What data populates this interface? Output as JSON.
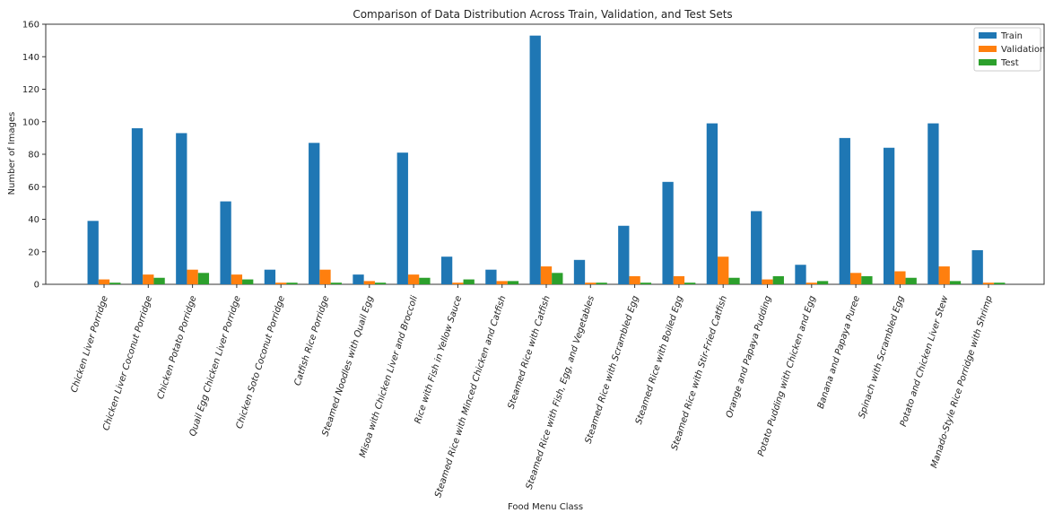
{
  "chart_data": {
    "type": "bar",
    "title": "Comparison of Data Distribution Across Train, Validation, and Test Sets",
    "xlabel": "Food Menu Class",
    "ylabel": "Number of Images",
    "ylim": [
      0,
      160
    ],
    "yticks": [
      0,
      20,
      40,
      60,
      80,
      100,
      120,
      140,
      160
    ],
    "legend_position": "top-right",
    "grid": false,
    "categories": [
      "Chicken Liver Porridge",
      "Chicken Liver Coconut Porridge",
      "Chicken Potato Porridge",
      "Quail Egg Chicken Liver Porridge",
      "Chicken Soto Coconut Porridge",
      "Catfish Rice Porridge",
      "Steamed Noodles with Quail Egg",
      "Misoa with Chicken Liver and Broccoli",
      "Rice with Fish in Yellow Sauce",
      "Steamed Rice with Minced Chicken and Catfish",
      "Steamed Rice with Catfish",
      "Steamed Rice with Fish, Egg, and Vegetables",
      "Steamed Rice with Scrambled Egg",
      "Steamed Rice with Boiled Egg",
      "Steamed Rice with Stir-Fried Catfish",
      "Orange and Papaya Pudding",
      "Potato Pudding with Chicken and Egg",
      "Banana and Papaya Puree",
      "Spinach with Scrambled Egg",
      "Potato and Chicken Liver Stew",
      "Manado-Style Rice Porridge with Shrimp"
    ],
    "series": [
      {
        "name": "Train",
        "color": "#1f77b4",
        "values": [
          39,
          96,
          93,
          51,
          9,
          87,
          6,
          81,
          17,
          9,
          153,
          15,
          36,
          63,
          99,
          45,
          12,
          90,
          84,
          99,
          21
        ]
      },
      {
        "name": "Validation",
        "color": "#ff7f0e",
        "values": [
          3,
          6,
          9,
          6,
          1,
          9,
          2,
          6,
          1,
          2,
          11,
          1,
          5,
          5,
          17,
          3,
          1,
          7,
          8,
          11,
          1
        ]
      },
      {
        "name": "Test",
        "color": "#2ca02c",
        "values": [
          1,
          4,
          7,
          3,
          1,
          1,
          1,
          4,
          3,
          2,
          7,
          1,
          1,
          1,
          4,
          5,
          2,
          5,
          4,
          2,
          1
        ]
      }
    ]
  }
}
